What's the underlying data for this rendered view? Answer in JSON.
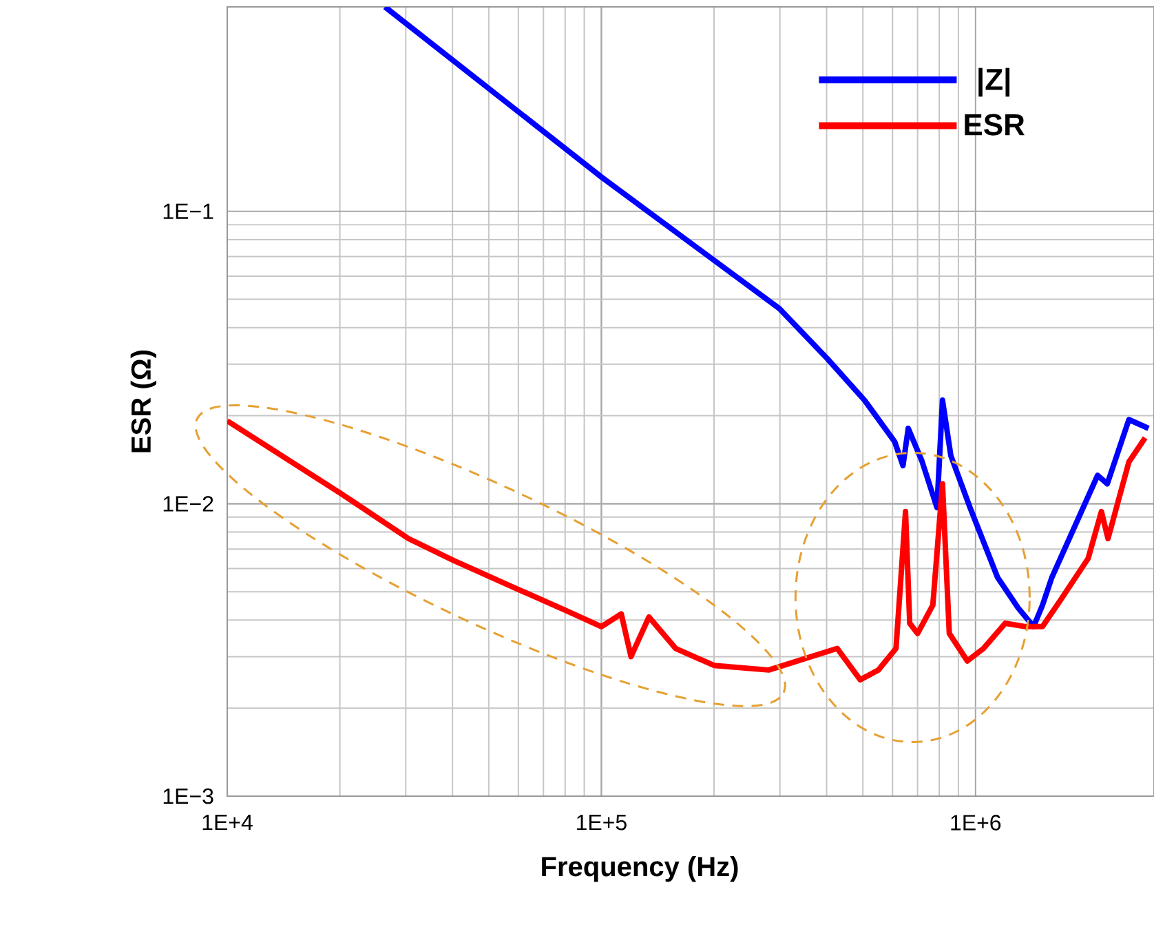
{
  "chart_data": {
    "type": "line",
    "xlabel": "Frequency (Hz)",
    "ylabel": "ESR (Ω)",
    "log": "xy",
    "grid": true,
    "legend": "top right",
    "xlim": [
      10000,
      3000000
    ],
    "ylim": [
      0.001,
      0.5
    ],
    "xticks": [
      {
        "value": 10000,
        "label": "1E+4"
      },
      {
        "value": 100000,
        "label": "1E+5"
      },
      {
        "value": 1000000,
        "label": "1E+6"
      }
    ],
    "yticks": [
      {
        "value": 0.001,
        "label": "1E−3"
      },
      {
        "value": 0.01,
        "label": "1E−2"
      },
      {
        "value": 0.1,
        "label": "1E−1"
      }
    ],
    "series": [
      {
        "name": "|Z|",
        "color": "#0000ff",
        "x": [
          26400,
          100000,
          299000,
          402000,
          505000,
          608000,
          640000,
          661000,
          719000,
          789000,
          816000,
          859000,
          967000,
          1145000,
          1300000,
          1430000,
          1510000,
          1600000,
          2120000,
          2250000,
          2570000,
          2900000
        ],
        "values": [
          0.5,
          0.131,
          0.0465,
          0.0313,
          0.0226,
          0.0163,
          0.0135,
          0.0181,
          0.014,
          0.0097,
          0.0226,
          0.0146,
          0.0097,
          0.0056,
          0.0044,
          0.0038,
          0.0045,
          0.0056,
          0.0125,
          0.0117,
          0.0194,
          0.0181
        ]
      },
      {
        "name": "ESR",
        "color": "#ff0000",
        "x": [
          10000,
          20000,
          30500,
          40200,
          59800,
          80900,
          100000,
          113000,
          120000,
          134000,
          158000,
          200000,
          280000,
          427000,
          492000,
          550000,
          613000,
          650000,
          667000,
          700000,
          769000,
          816000,
          851000,
          951000,
          1050000,
          1200000,
          1360000,
          1510000,
          1690000,
          2000000,
          2170000,
          2260000,
          2570000,
          2840000
        ],
        "values": [
          0.0192,
          0.0109,
          0.0076,
          0.0064,
          0.0051,
          0.0043,
          0.0038,
          0.0042,
          0.003,
          0.0041,
          0.0032,
          0.0028,
          0.0027,
          0.0032,
          0.0025,
          0.0027,
          0.0032,
          0.0094,
          0.0039,
          0.0036,
          0.0045,
          0.0117,
          0.0036,
          0.0029,
          0.0032,
          0.0039,
          0.0038,
          0.0038,
          0.0047,
          0.0065,
          0.0094,
          0.0076,
          0.0139,
          0.0168
        ]
      }
    ]
  }
}
